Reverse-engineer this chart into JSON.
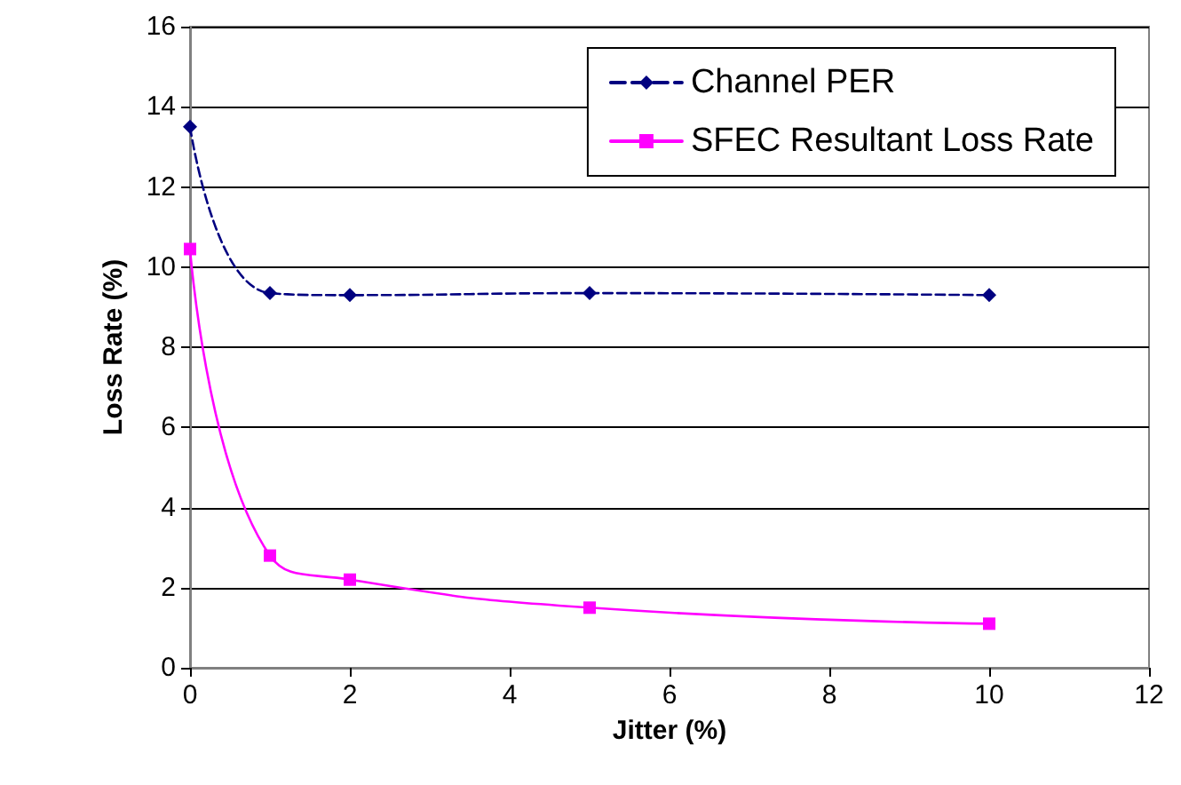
{
  "chart_data": {
    "type": "line",
    "xlabel": "Jitter (%)",
    "ylabel": "Loss Rate (%)",
    "xlim": [
      0,
      12
    ],
    "xticks": [
      0,
      2,
      4,
      6,
      8,
      10,
      12
    ],
    "ylim": [
      0,
      16
    ],
    "yticks": [
      0,
      2,
      4,
      6,
      8,
      10,
      12,
      14,
      16
    ],
    "grid": "y",
    "legend": "top right",
    "series": [
      {
        "name": "Channel PER",
        "color": "#000080",
        "x": [
          0,
          1,
          2,
          5,
          10
        ],
        "values": [
          13.5,
          9.35,
          9.3,
          9.35,
          9.3
        ],
        "marker": "diamond",
        "line_style": "dashed"
      },
      {
        "name": "SFEC Resultant Loss Rate",
        "color": "#ff00ff",
        "x": [
          0,
          1,
          2,
          5,
          10
        ],
        "values": [
          10.45,
          2.8,
          2.2,
          1.5,
          1.1
        ],
        "marker": "square",
        "line_style": "solid"
      }
    ]
  }
}
